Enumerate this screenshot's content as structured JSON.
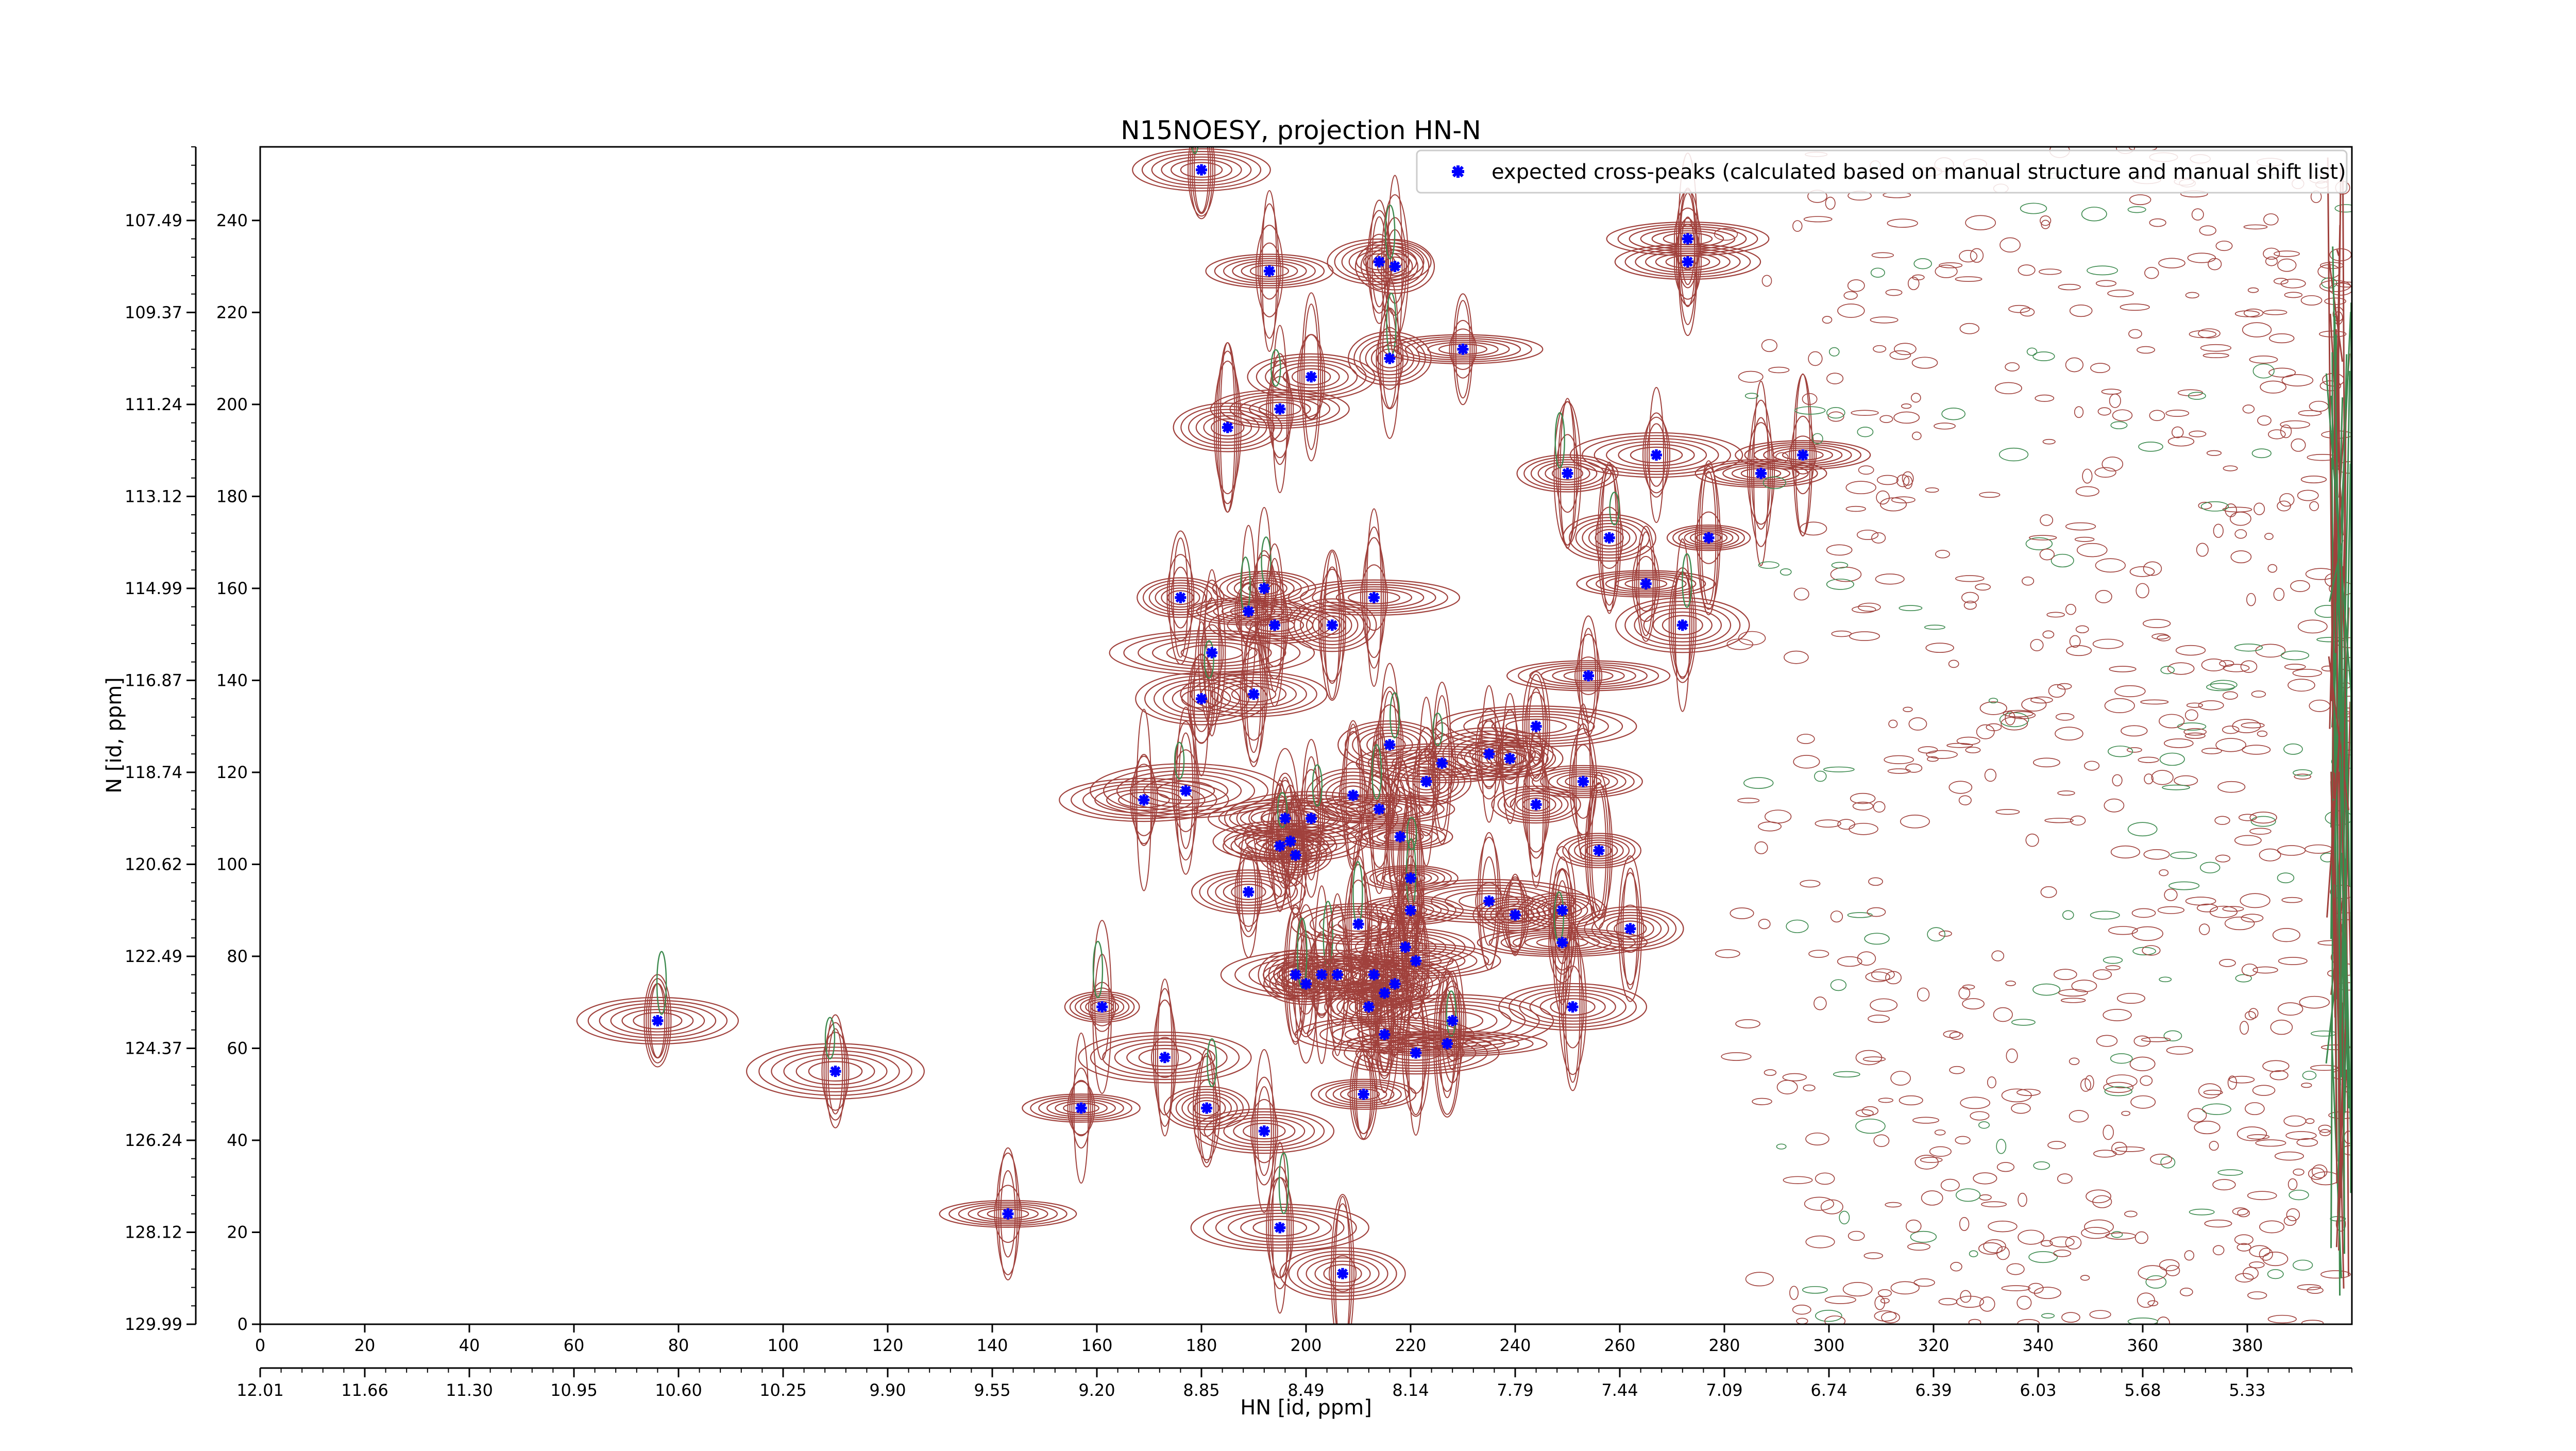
{
  "chart_data": {
    "type": "scatter",
    "title": "N15NOESY, projection HN-N",
    "xlabel": "HN [id, ppm]",
    "ylabel": "N [id, ppm]",
    "x_index_range": [
      0,
      400
    ],
    "y_index_range": [
      0,
      256
    ],
    "x_index_ticks": [
      "0",
      "20",
      "40",
      "60",
      "80",
      "100",
      "120",
      "140",
      "160",
      "180",
      "200",
      "220",
      "240",
      "260",
      "280",
      "300",
      "320",
      "340",
      "360",
      "380"
    ],
    "y_index_ticks": [
      "0",
      "20",
      "40",
      "60",
      "80",
      "100",
      "120",
      "140",
      "160",
      "180",
      "200",
      "220",
      "240"
    ],
    "x_ppm_ticks": [
      "12.01",
      "11.66",
      "11.30",
      "10.95",
      "10.60",
      "10.25",
      "9.90",
      "9.55",
      "9.20",
      "8.85",
      "8.49",
      "8.14",
      "7.79",
      "7.44",
      "7.09",
      "6.74",
      "6.39",
      "6.03",
      "5.68",
      "5.33"
    ],
    "y_ppm_ticks": [
      "129.99",
      "128.12",
      "126.24",
      "124.37",
      "122.49",
      "120.62",
      "118.74",
      "116.87",
      "114.99",
      "113.12",
      "111.24",
      "109.37",
      "107.49"
    ],
    "legend_position": "top-right",
    "colors": {
      "contour_positive": "#a0413c",
      "contour_negative": "#3c8a4e",
      "expected_peak": "#0000ff"
    },
    "series": [
      {
        "name": "expected cross-peaks (calculated based on manual structure and manual shift list)",
        "points": [
          {
            "x": 180,
            "y": 251
          },
          {
            "x": 193,
            "y": 229
          },
          {
            "x": 214,
            "y": 231
          },
          {
            "x": 217,
            "y": 230
          },
          {
            "x": 273,
            "y": 236
          },
          {
            "x": 273,
            "y": 231
          },
          {
            "x": 216,
            "y": 210
          },
          {
            "x": 230,
            "y": 212
          },
          {
            "x": 201,
            "y": 206
          },
          {
            "x": 195,
            "y": 199
          },
          {
            "x": 185,
            "y": 195
          },
          {
            "x": 267,
            "y": 189
          },
          {
            "x": 250,
            "y": 185
          },
          {
            "x": 287,
            "y": 185
          },
          {
            "x": 295,
            "y": 189
          },
          {
            "x": 258,
            "y": 171
          },
          {
            "x": 277,
            "y": 171
          },
          {
            "x": 265,
            "y": 161
          },
          {
            "x": 192,
            "y": 160
          },
          {
            "x": 176,
            "y": 158
          },
          {
            "x": 213,
            "y": 158
          },
          {
            "x": 189,
            "y": 155
          },
          {
            "x": 194,
            "y": 152
          },
          {
            "x": 205,
            "y": 152
          },
          {
            "x": 272,
            "y": 152
          },
          {
            "x": 182,
            "y": 146
          },
          {
            "x": 190,
            "y": 137
          },
          {
            "x": 180,
            "y": 136
          },
          {
            "x": 254,
            "y": 141
          },
          {
            "x": 244,
            "y": 130
          },
          {
            "x": 216,
            "y": 126
          },
          {
            "x": 235,
            "y": 124
          },
          {
            "x": 239,
            "y": 123
          },
          {
            "x": 226,
            "y": 122
          },
          {
            "x": 223,
            "y": 118
          },
          {
            "x": 253,
            "y": 118
          },
          {
            "x": 177,
            "y": 116
          },
          {
            "x": 169,
            "y": 114
          },
          {
            "x": 209,
            "y": 115
          },
          {
            "x": 214,
            "y": 112
          },
          {
            "x": 244,
            "y": 113
          },
          {
            "x": 196,
            "y": 110
          },
          {
            "x": 201,
            "y": 110
          },
          {
            "x": 218,
            "y": 106
          },
          {
            "x": 197,
            "y": 105
          },
          {
            "x": 195,
            "y": 104
          },
          {
            "x": 198,
            "y": 102
          },
          {
            "x": 256,
            "y": 103
          },
          {
            "x": 220,
            "y": 97
          },
          {
            "x": 189,
            "y": 94
          },
          {
            "x": 235,
            "y": 92
          },
          {
            "x": 220,
            "y": 90
          },
          {
            "x": 240,
            "y": 89
          },
          {
            "x": 249,
            "y": 90
          },
          {
            "x": 210,
            "y": 87
          },
          {
            "x": 262,
            "y": 86
          },
          {
            "x": 219,
            "y": 82
          },
          {
            "x": 249,
            "y": 83
          },
          {
            "x": 221,
            "y": 79
          },
          {
            "x": 198,
            "y": 76
          },
          {
            "x": 203,
            "y": 76
          },
          {
            "x": 206,
            "y": 76
          },
          {
            "x": 213,
            "y": 76
          },
          {
            "x": 200,
            "y": 74
          },
          {
            "x": 217,
            "y": 74
          },
          {
            "x": 215,
            "y": 72
          },
          {
            "x": 161,
            "y": 69
          },
          {
            "x": 212,
            "y": 69
          },
          {
            "x": 251,
            "y": 69
          },
          {
            "x": 76,
            "y": 66
          },
          {
            "x": 228,
            "y": 66
          },
          {
            "x": 215,
            "y": 63
          },
          {
            "x": 227,
            "y": 61
          },
          {
            "x": 221,
            "y": 59
          },
          {
            "x": 173,
            "y": 58
          },
          {
            "x": 110,
            "y": 55
          },
          {
            "x": 211,
            "y": 50
          },
          {
            "x": 157,
            "y": 47
          },
          {
            "x": 181,
            "y": 47
          },
          {
            "x": 192,
            "y": 42
          },
          {
            "x": 143,
            "y": 24
          },
          {
            "x": 195,
            "y": 21
          },
          {
            "x": 207,
            "y": 11
          }
        ]
      }
    ]
  }
}
